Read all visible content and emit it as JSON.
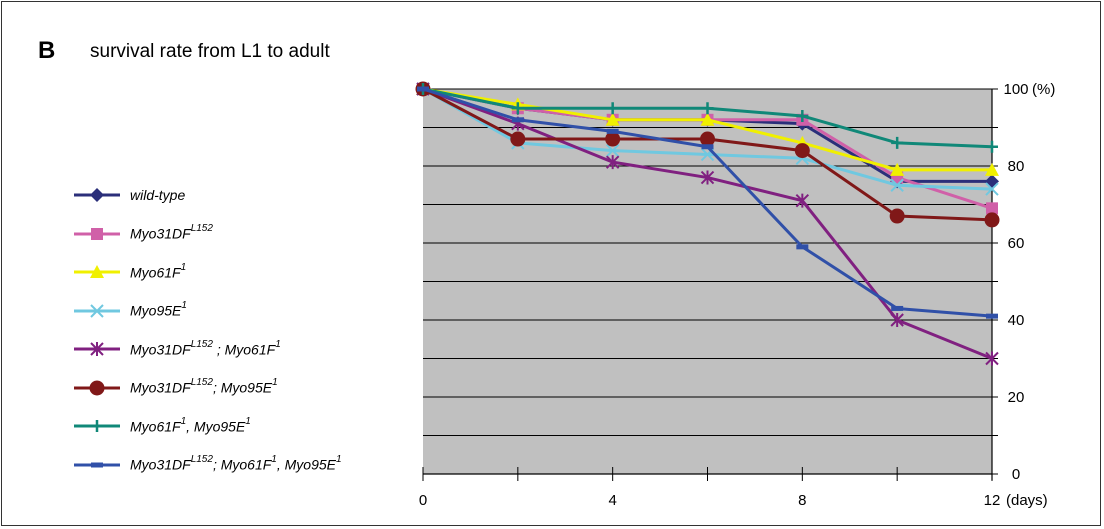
{
  "panel": {
    "letter": "B",
    "title": "survival rate from L1 to adult"
  },
  "colors": {
    "plot_background": "#c0c0c0",
    "grid": "#000000"
  },
  "chart_data": {
    "type": "line",
    "x": [
      0,
      2,
      4,
      6,
      8,
      10,
      12
    ],
    "xticks": [
      "0",
      "4",
      "8",
      "12"
    ],
    "xtick_values": [
      0,
      4,
      8,
      12
    ],
    "x_unit": "(days)",
    "yticks": [
      "0",
      "20",
      "40",
      "60",
      "80",
      "100"
    ],
    "ytick_values": [
      0,
      20,
      40,
      60,
      80,
      100
    ],
    "y_unit": "(%)",
    "xlim": [
      0,
      12
    ],
    "ylim": [
      0,
      100
    ],
    "grid": true,
    "legend_position": "left",
    "series": [
      {
        "name": "wild-type",
        "base": "wild-type",
        "color": "#2b2f7a",
        "marker": "diamond",
        "values": [
          100,
          95,
          92,
          92,
          91,
          76,
          76
        ]
      },
      {
        "name": "Myo31DF L152",
        "base": "Myo31DF",
        "sup": "L152",
        "color": "#d060a8",
        "marker": "square",
        "values": [
          100,
          95,
          92,
          92,
          92,
          77,
          69
        ]
      },
      {
        "name": "Myo61F 1",
        "base": "Myo61F",
        "sup": "1",
        "color": "#f0f000",
        "marker": "triangle",
        "values": [
          100,
          96,
          92,
          92,
          86,
          79,
          79
        ]
      },
      {
        "name": "Myo95E 1",
        "base": "Myo95E",
        "sup": "1",
        "color": "#70c8e0",
        "marker": "x",
        "values": [
          100,
          86,
          84,
          83,
          82,
          75,
          74
        ]
      },
      {
        "name": "Myo31DF L152 ; Myo61F 1",
        "base": "Myo31DF",
        "sup": "L152",
        "mid": " ; Myo61F",
        "sup2": "1",
        "color": "#802080",
        "marker": "star",
        "values": [
          100,
          91,
          81,
          77,
          71,
          40,
          30
        ]
      },
      {
        "name": "Myo31DF L152; Myo95E 1",
        "base": "Myo31DF",
        "sup": "L152",
        "mid": "; Myo95E",
        "sup2": "1",
        "color": "#801818",
        "marker": "circle",
        "values": [
          100,
          87,
          87,
          87,
          84,
          67,
          66
        ]
      },
      {
        "name": "Myo61F 1, Myo95E 1",
        "base": "Myo61F",
        "sup": "1",
        "mid": ", Myo95E",
        "sup2": "1",
        "color": "#108878",
        "marker": "plus",
        "values": [
          100,
          95,
          95,
          95,
          93,
          86,
          85
        ]
      },
      {
        "name": "Myo31DF L152; Myo61F 1, Myo95E 1",
        "base": "Myo31DF",
        "sup": "L152",
        "mid": "; Myo61F",
        "sup2": "1",
        "mid2": ", Myo95E",
        "sup3": "1",
        "color": "#3050a8",
        "marker": "dash",
        "values": [
          100,
          92,
          89,
          85,
          59,
          43,
          41
        ]
      }
    ]
  }
}
